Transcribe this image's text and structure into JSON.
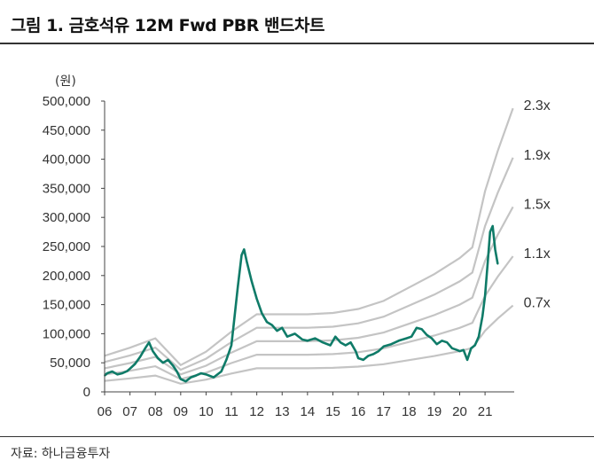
{
  "header": {
    "title": "그림 1.  금호석유 12M Fwd PBR 밴드차트"
  },
  "footer": {
    "source": "자료: 하나금융투자"
  },
  "colors": {
    "price": "#0f7b68",
    "band": "#c4c4c4",
    "axis": "#444444"
  },
  "chart_data": {
    "type": "line",
    "title": "금호석유 12M Fwd PBR 밴드차트",
    "ylabel": "(원)",
    "ylim": [
      0,
      500000
    ],
    "xlim": [
      2006,
      2022.15
    ],
    "yticks": [
      0,
      50000,
      100000,
      150000,
      200000,
      250000,
      300000,
      350000,
      400000,
      450000,
      500000
    ],
    "ytick_labels": [
      "0",
      "50,000",
      "100,000",
      "150,000",
      "200,000",
      "250,000",
      "300,000",
      "350,000",
      "400,000",
      "450,000",
      "500,000"
    ],
    "xtick_labels": [
      "06",
      "07",
      "08",
      "09",
      "10",
      "11",
      "12",
      "13",
      "14",
      "15",
      "16",
      "17",
      "18",
      "19",
      "20",
      "21"
    ],
    "bps_x": [
      2006,
      2007,
      2008,
      2009,
      2010,
      2011,
      2012,
      2013,
      2014,
      2015,
      2016,
      2017,
      2018,
      2019,
      2020,
      2020.5,
      2021,
      2021.5,
      2022.1
    ],
    "bps": [
      27000,
      33000,
      40000,
      20000,
      30000,
      45000,
      58000,
      58000,
      58000,
      59000,
      62000,
      68000,
      78000,
      88000,
      100000,
      108000,
      150000,
      180000,
      212000
    ],
    "bands": [
      {
        "label": "2.3x",
        "multiple": 2.3
      },
      {
        "label": "1.9x",
        "multiple": 1.9
      },
      {
        "label": "1.5x",
        "multiple": 1.5
      },
      {
        "label": "1.1x",
        "multiple": 1.1
      },
      {
        "label": "0.7x",
        "multiple": 0.7
      }
    ],
    "series": [
      {
        "x": [
          2006,
          2006.1,
          2006.3,
          2006.5,
          2006.7,
          2006.9,
          2007.0,
          2007.2,
          2007.4,
          2007.6,
          2007.75,
          2007.9,
          2008.1,
          2008.3,
          2008.5,
          2008.7,
          2008.85,
          2009.0,
          2009.2,
          2009.4,
          2009.6,
          2009.8,
          2010.0,
          2010.3,
          2010.6,
          2010.8,
          2011.0,
          2011.1,
          2011.25,
          2011.4,
          2011.5,
          2011.6,
          2011.8,
          2012.0,
          2012.2,
          2012.4,
          2012.6,
          2012.8,
          2013.0,
          2013.2,
          2013.5,
          2013.8,
          2014.0,
          2014.3,
          2014.6,
          2014.9,
          2015.1,
          2015.3,
          2015.5,
          2015.7,
          2015.9,
          2016.0,
          2016.2,
          2016.4,
          2016.6,
          2016.8,
          2017.0,
          2017.3,
          2017.6,
          2017.9,
          2018.1,
          2018.3,
          2018.5,
          2018.7,
          2018.9,
          2019.1,
          2019.3,
          2019.5,
          2019.7,
          2019.9,
          2020.0,
          2020.15,
          2020.3,
          2020.45,
          2020.6,
          2020.75,
          2020.9,
          2021.0,
          2021.1,
          2021.2,
          2021.3,
          2021.4,
          2021.5
        ],
        "values": [
          28000,
          32000,
          35000,
          30000,
          32000,
          36000,
          40000,
          48000,
          60000,
          75000,
          85000,
          70000,
          58000,
          50000,
          55000,
          45000,
          35000,
          22000,
          18000,
          25000,
          28000,
          32000,
          30000,
          25000,
          35000,
          55000,
          80000,
          120000,
          180000,
          235000,
          245000,
          225000,
          190000,
          160000,
          135000,
          120000,
          115000,
          105000,
          110000,
          95000,
          100000,
          90000,
          88000,
          92000,
          85000,
          80000,
          95000,
          85000,
          80000,
          85000,
          70000,
          58000,
          55000,
          62000,
          65000,
          70000,
          78000,
          82000,
          88000,
          92000,
          95000,
          110000,
          108000,
          98000,
          92000,
          82000,
          88000,
          85000,
          75000,
          72000,
          70000,
          72000,
          55000,
          75000,
          80000,
          95000,
          130000,
          165000,
          220000,
          275000,
          285000,
          245000,
          220000
        ]
      }
    ],
    "grid": false,
    "legend": "right-end labels"
  }
}
